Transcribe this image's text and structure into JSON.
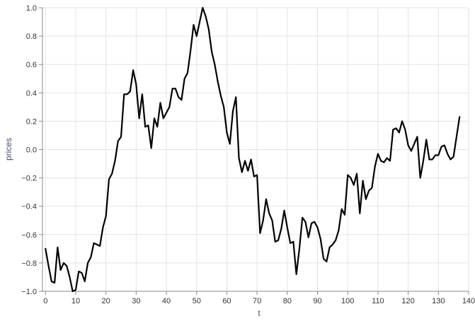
{
  "chart_data": {
    "type": "line",
    "title": "",
    "xlabel": "t",
    "ylabel": "prices",
    "xlim": [
      -1,
      140
    ],
    "ylim": [
      -1.0,
      1.0
    ],
    "x_ticks": [
      0,
      10,
      20,
      30,
      40,
      50,
      60,
      70,
      80,
      90,
      100,
      110,
      120,
      130,
      140
    ],
    "x_tick_labels": [
      "0",
      "10",
      "20",
      "30",
      "40",
      "50",
      "60",
      "70",
      "80",
      "90",
      "100",
      "110",
      "120",
      "130",
      "140"
    ],
    "y_ticks": [
      -1.0,
      -0.8,
      -0.6,
      -0.4,
      -0.2,
      0.0,
      0.2,
      0.4,
      0.6,
      0.8,
      1.0
    ],
    "y_tick_labels": [
      "−1.0",
      "−0.8",
      "−0.6",
      "−0.4",
      "−0.2",
      "0.0",
      "0.2",
      "0.4",
      "0.6",
      "0.8",
      "1.0"
    ],
    "grid": true,
    "line_color": "#000000",
    "series": [
      {
        "x": [
          0,
          1,
          2,
          3,
          4,
          5,
          6,
          7,
          8,
          9,
          10,
          11,
          12,
          13,
          14,
          15,
          16,
          17,
          18,
          19,
          20,
          21,
          22,
          23,
          24,
          25,
          26,
          27,
          28,
          29,
          30,
          31,
          32,
          33,
          34,
          35,
          36,
          37,
          38,
          39,
          40,
          41,
          42,
          43,
          44,
          45,
          46,
          47,
          48,
          49,
          50,
          51,
          52,
          53,
          54,
          55,
          56,
          57,
          58,
          59,
          60,
          61,
          62,
          63,
          64,
          65,
          66,
          67,
          68,
          69,
          70,
          71,
          72,
          73,
          74,
          75,
          76,
          77,
          78,
          79,
          80,
          81,
          82,
          83,
          84,
          85,
          86,
          87,
          88,
          89,
          90,
          91,
          92,
          93,
          94,
          95,
          96,
          97,
          98,
          99,
          100,
          101,
          102,
          103,
          104,
          105,
          106,
          107,
          108,
          109,
          110,
          111,
          112,
          113,
          114,
          115,
          116,
          117,
          118,
          119,
          120,
          121,
          122,
          123,
          124,
          125,
          126,
          127,
          128,
          129,
          130,
          131,
          132,
          133,
          134,
          135,
          136,
          137
        ],
        "values": [
          -0.7,
          -0.82,
          -0.93,
          -0.94,
          -0.69,
          -0.85,
          -0.8,
          -0.82,
          -0.9,
          -1.0,
          -0.99,
          -0.86,
          -0.87,
          -0.93,
          -0.8,
          -0.76,
          -0.66,
          -0.67,
          -0.68,
          -0.55,
          -0.47,
          -0.21,
          -0.17,
          -0.08,
          0.06,
          0.09,
          0.39,
          0.39,
          0.41,
          0.56,
          0.46,
          0.22,
          0.39,
          0.16,
          0.17,
          0.01,
          0.22,
          0.16,
          0.33,
          0.22,
          0.26,
          0.3,
          0.43,
          0.43,
          0.37,
          0.35,
          0.5,
          0.54,
          0.7,
          0.88,
          0.8,
          0.9,
          1.0,
          0.94,
          0.85,
          0.69,
          0.6,
          0.48,
          0.38,
          0.3,
          0.12,
          0.04,
          0.27,
          0.37,
          -0.06,
          -0.16,
          -0.08,
          -0.15,
          -0.07,
          -0.19,
          -0.18,
          -0.59,
          -0.5,
          -0.35,
          -0.45,
          -0.5,
          -0.65,
          -0.64,
          -0.56,
          -0.43,
          -0.55,
          -0.66,
          -0.65,
          -0.88,
          -0.7,
          -0.48,
          -0.51,
          -0.62,
          -0.52,
          -0.51,
          -0.55,
          -0.63,
          -0.77,
          -0.79,
          -0.69,
          -0.67,
          -0.64,
          -0.57,
          -0.42,
          -0.46,
          -0.18,
          -0.2,
          -0.25,
          -0.17,
          -0.45,
          -0.22,
          -0.35,
          -0.29,
          -0.27,
          -0.12,
          -0.03,
          -0.08,
          -0.09,
          -0.06,
          -0.08,
          0.14,
          0.15,
          0.12,
          0.2,
          0.14,
          0.03,
          -0.01,
          0.04,
          0.09,
          -0.2,
          -0.08,
          0.07,
          -0.07,
          -0.07,
          -0.04,
          -0.04,
          0.02,
          0.03,
          -0.03,
          -0.07,
          -0.05,
          0.09,
          0.23
        ]
      }
    ]
  }
}
